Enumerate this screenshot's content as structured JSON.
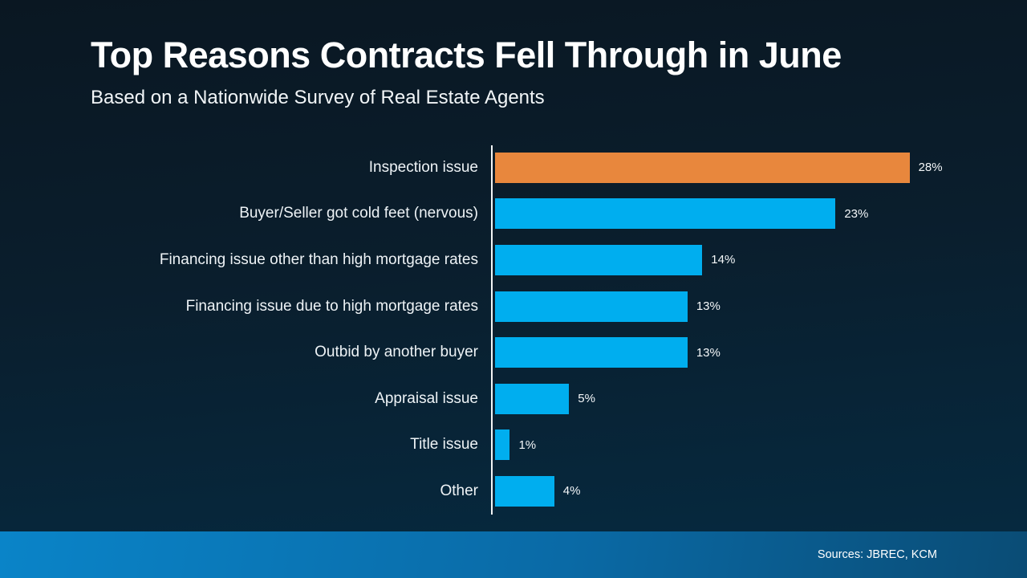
{
  "slide": {
    "title": "Top Reasons Contracts Fell Through in June",
    "subtitle": "Based on a Nationwide Survey of Real Estate Agents",
    "source": "Sources: JBREC, KCM"
  },
  "colors": {
    "background_top": "#0a1722",
    "background_bottom": "#052b42",
    "bar_default": "#00aeef",
    "bar_highlight": "#e8873d",
    "axis_line": "#f2f5f6",
    "footer_gradient_left": "#0a84c8",
    "footer_gradient_right": "#0a4c75",
    "text": "#ffffff"
  },
  "chart_data": {
    "type": "bar",
    "orientation": "horizontal",
    "title": "Top Reasons Contracts Fell Through in June",
    "subtitle": "Based on a Nationwide Survey of Real Estate Agents",
    "categories": [
      "Inspection issue",
      "Buyer/Seller got cold feet (nervous)",
      "Financing issue other than high mortgage rates",
      "Financing issue due to high mortgage rates",
      "Outbid by another buyer",
      "Appraisal issue",
      "Title issue",
      "Other"
    ],
    "values": [
      28,
      23,
      14,
      13,
      13,
      5,
      1,
      4
    ],
    "value_labels": [
      "28%",
      "23%",
      "14%",
      "13%",
      "13%",
      "5%",
      "1%",
      "4%"
    ],
    "highlight_index": 0,
    "unit": "percent",
    "xlim": [
      0,
      30
    ],
    "grid": false,
    "legend": false,
    "value_label_position": "outside-end"
  }
}
